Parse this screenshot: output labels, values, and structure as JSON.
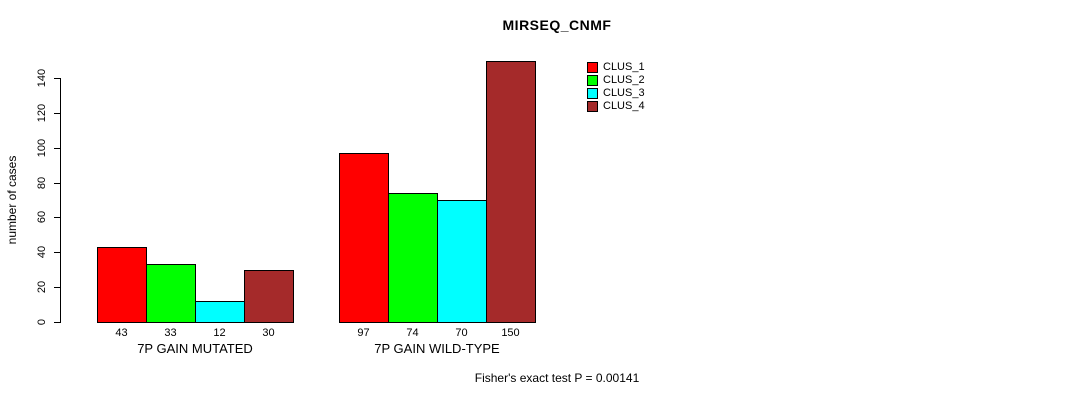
{
  "chart_data": {
    "type": "bar",
    "title": "MIRSEQ_CNMF",
    "ylabel": "number of cases",
    "xlabel": "",
    "ylim": [
      0,
      150
    ],
    "yticks": [
      0,
      20,
      40,
      60,
      80,
      100,
      120,
      140
    ],
    "categories": [
      "7P GAIN MUTATED",
      "7P GAIN WILD-TYPE"
    ],
    "series": [
      {
        "name": "CLUS_1",
        "color": "#ff0000",
        "values": [
          43,
          97
        ]
      },
      {
        "name": "CLUS_2",
        "color": "#00ff00",
        "values": [
          33,
          74
        ]
      },
      {
        "name": "CLUS_3",
        "color": "#00ffff",
        "values": [
          12,
          70
        ]
      },
      {
        "name": "CLUS_4",
        "color": "#a52a2a",
        "values": [
          30,
          150
        ]
      }
    ],
    "bar_value_labels": [
      [
        "43",
        "33",
        "12",
        "30"
      ],
      [
        "97",
        "74",
        "70",
        "150"
      ]
    ],
    "legend_position": "right",
    "grid": false,
    "annotation": "Fisher's exact test P = 0.00141"
  },
  "legend_labels": [
    "CLUS_1",
    "CLUS_2",
    "CLUS_3",
    "CLUS_4"
  ]
}
